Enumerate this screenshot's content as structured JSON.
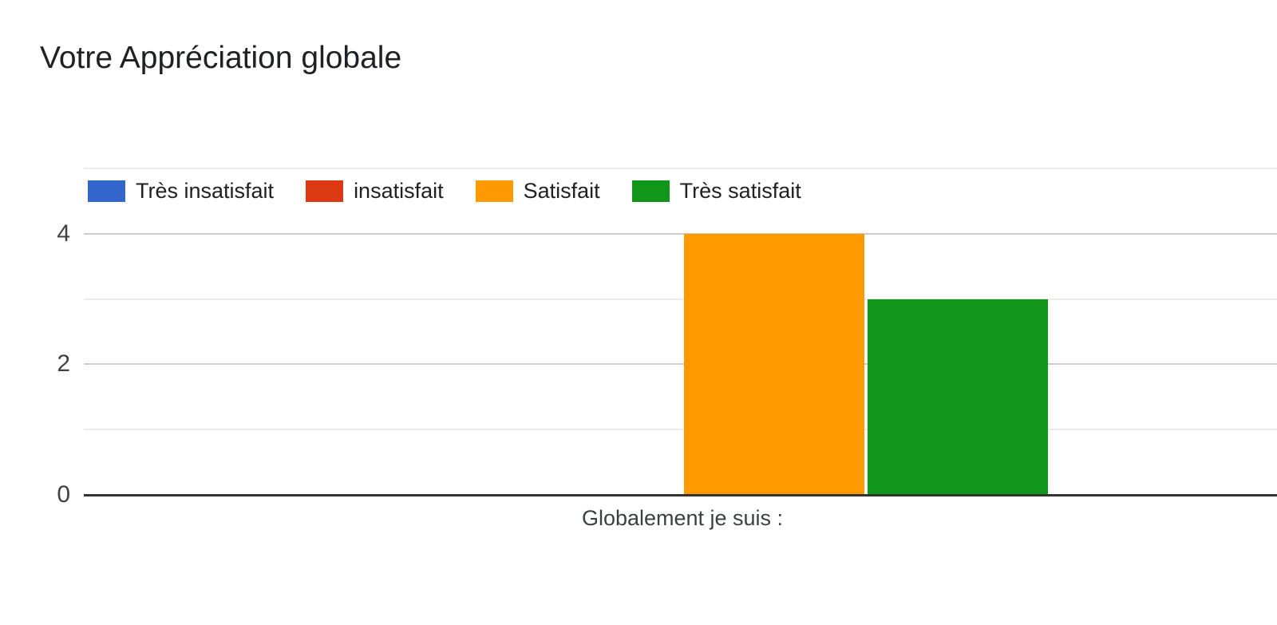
{
  "page": {
    "background": "#ffffff"
  },
  "chart_data": {
    "type": "bar",
    "title": "Votre Appréciation globale",
    "categories": [
      "Globalement je suis :"
    ],
    "series": [
      {
        "name": "Très insatisfait",
        "values": [
          0
        ],
        "color": "#3366CC"
      },
      {
        "name": "insatisfait",
        "values": [
          0
        ],
        "color": "#DC3912"
      },
      {
        "name": "Satisfait",
        "values": [
          4
        ],
        "color": "#FF9900"
      },
      {
        "name": "Très satisfait",
        "values": [
          3
        ],
        "color": "#109618"
      }
    ],
    "xlabel": "Globalement je suis :",
    "ylabel": "",
    "ylim": [
      0,
      5
    ],
    "yticks": [
      0,
      2,
      4
    ],
    "grid": true,
    "legend_position": "top",
    "axis_color": "#333333",
    "gridline_major_color": "#cccccc",
    "gridline_minor_color": "#ebebeb",
    "tick_label_color": "#424242",
    "title_color": "#202124"
  }
}
